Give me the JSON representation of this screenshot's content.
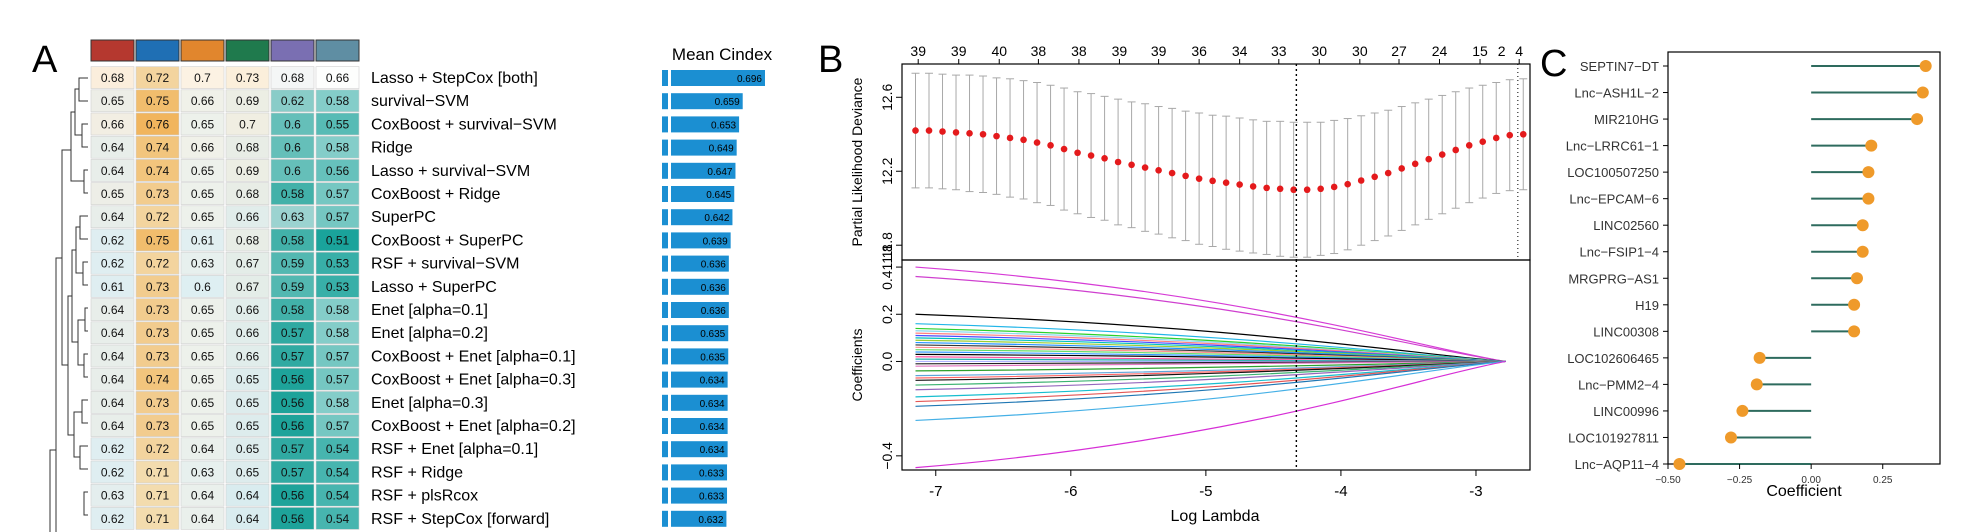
{
  "panels": {
    "a": "A",
    "b": "B",
    "c": "C"
  },
  "heatmap": {
    "swatch_colors": [
      "#b5382f",
      "#1f6fb4",
      "#e1862d",
      "#1f7a4d",
      "#7a6fb2",
      "#5f8ea3"
    ],
    "col_scale": [
      [
        0.62,
        0.68
      ],
      [
        0.71,
        0.76
      ],
      [
        0.6,
        0.7
      ],
      [
        0.64,
        0.73
      ],
      [
        0.56,
        0.68
      ],
      [
        0.51,
        0.66
      ]
    ],
    "low_colors": [
      "#dfeef1",
      "#f3dcae",
      "#deeff2",
      "#d9ecef",
      "#1ea39a",
      "#1aa39b"
    ],
    "high_colors": [
      "#fbeedc",
      "#f1b55d",
      "#fcf2e3",
      "#fbefdb",
      "#f4f6f6",
      "#fdfefd"
    ],
    "rows": [
      {
        "model": "Lasso + StepCox [both]",
        "values": [
          "0.68",
          "0.72",
          "0.7",
          "0.73",
          "0.68",
          "0.66"
        ],
        "cindex": "0.696"
      },
      {
        "model": "survival−SVM",
        "values": [
          "0.65",
          "0.75",
          "0.66",
          "0.69",
          "0.62",
          "0.58"
        ],
        "cindex": "0.659"
      },
      {
        "model": "CoxBoost + survival−SVM",
        "values": [
          "0.66",
          "0.76",
          "0.65",
          "0.7",
          "0.6",
          "0.55"
        ],
        "cindex": "0.653"
      },
      {
        "model": "Ridge",
        "values": [
          "0.64",
          "0.74",
          "0.66",
          "0.68",
          "0.6",
          "0.58"
        ],
        "cindex": "0.649"
      },
      {
        "model": "Lasso + survival−SVM",
        "values": [
          "0.64",
          "0.74",
          "0.65",
          "0.69",
          "0.6",
          "0.56"
        ],
        "cindex": "0.647"
      },
      {
        "model": "CoxBoost + Ridge",
        "values": [
          "0.65",
          "0.73",
          "0.65",
          "0.68",
          "0.58",
          "0.57"
        ],
        "cindex": "0.645"
      },
      {
        "model": "SuperPC",
        "values": [
          "0.64",
          "0.72",
          "0.65",
          "0.66",
          "0.63",
          "0.57"
        ],
        "cindex": "0.642"
      },
      {
        "model": "CoxBoost + SuperPC",
        "values": [
          "0.62",
          "0.75",
          "0.61",
          "0.68",
          "0.58",
          "0.51"
        ],
        "cindex": "0.639"
      },
      {
        "model": "RSF + survival−SVM",
        "values": [
          "0.62",
          "0.72",
          "0.63",
          "0.67",
          "0.59",
          "0.53"
        ],
        "cindex": "0.636"
      },
      {
        "model": "Lasso + SuperPC",
        "values": [
          "0.61",
          "0.73",
          "0.6",
          "0.67",
          "0.59",
          "0.53"
        ],
        "cindex": "0.636"
      },
      {
        "model": "Enet [alpha=0.1]",
        "values": [
          "0.64",
          "0.73",
          "0.65",
          "0.66",
          "0.58",
          "0.58"
        ],
        "cindex": "0.636"
      },
      {
        "model": "Enet [alpha=0.2]",
        "values": [
          "0.64",
          "0.73",
          "0.65",
          "0.66",
          "0.57",
          "0.58"
        ],
        "cindex": "0.635"
      },
      {
        "model": "CoxBoost + Enet [alpha=0.1]",
        "values": [
          "0.64",
          "0.73",
          "0.65",
          "0.66",
          "0.57",
          "0.57"
        ],
        "cindex": "0.635"
      },
      {
        "model": "CoxBoost + Enet [alpha=0.3]",
        "values": [
          "0.64",
          "0.74",
          "0.65",
          "0.65",
          "0.56",
          "0.57"
        ],
        "cindex": "0.634"
      },
      {
        "model": "Enet [alpha=0.3]",
        "values": [
          "0.64",
          "0.73",
          "0.65",
          "0.65",
          "0.56",
          "0.58"
        ],
        "cindex": "0.634"
      },
      {
        "model": "CoxBoost + Enet [alpha=0.2]",
        "values": [
          "0.64",
          "0.73",
          "0.65",
          "0.65",
          "0.56",
          "0.57"
        ],
        "cindex": "0.634"
      },
      {
        "model": "RSF + Enet [alpha=0.1]",
        "values": [
          "0.62",
          "0.72",
          "0.64",
          "0.65",
          "0.57",
          "0.54"
        ],
        "cindex": "0.634"
      },
      {
        "model": "RSF + Ridge",
        "values": [
          "0.62",
          "0.71",
          "0.63",
          "0.65",
          "0.57",
          "0.54"
        ],
        "cindex": "0.633"
      },
      {
        "model": "RSF + plsRcox",
        "values": [
          "0.63",
          "0.71",
          "0.64",
          "0.64",
          "0.56",
          "0.54"
        ],
        "cindex": "0.633"
      },
      {
        "model": "RSF + StepCox [forward]",
        "values": [
          "0.62",
          "0.71",
          "0.64",
          "0.64",
          "0.56",
          "0.54"
        ],
        "cindex": "0.632"
      }
    ]
  },
  "chart_data": [
    {
      "type": "bar",
      "orientation": "horizontal",
      "title": "Mean Cindex",
      "categories": [
        "Lasso + StepCox [both]",
        "survival−SVM",
        "CoxBoost + survival−SVM",
        "Ridge",
        "Lasso + survival−SVM",
        "CoxBoost + Ridge",
        "SuperPC",
        "CoxBoost + SuperPC",
        "RSF + survival−SVM",
        "Lasso + SuperPC",
        "Enet [alpha=0.1]",
        "Enet [alpha=0.2]",
        "CoxBoost + Enet [alpha=0.1]",
        "CoxBoost + Enet [alpha=0.3]",
        "Enet [alpha=0.3]",
        "CoxBoost + Enet [alpha=0.2]",
        "RSF + Enet [alpha=0.1]",
        "RSF + Ridge",
        "RSF + plsRcox",
        "RSF + StepCox [forward]"
      ],
      "values": [
        0.696,
        0.659,
        0.653,
        0.649,
        0.647,
        0.645,
        0.642,
        0.639,
        0.636,
        0.636,
        0.636,
        0.635,
        0.635,
        0.634,
        0.634,
        0.634,
        0.634,
        0.633,
        0.633,
        0.632
      ],
      "color": "#1b8fd2"
    },
    {
      "type": "scatter",
      "title": "",
      "xlabel": "",
      "ylabel": "Partial Likelihood Deviance",
      "xlim": [
        -7.25,
        -2.6
      ],
      "ylim": [
        11.72,
        12.78
      ],
      "xticks": [
        -7,
        -6,
        -5,
        -4,
        -3
      ],
      "yticks": [
        11.8,
        12.2,
        12.6
      ],
      "ytick_labels": [
        "11.8",
        "12.2",
        "12.6"
      ],
      "top_ticks": {
        "x": [
          -7.13,
          -6.83,
          -6.53,
          -6.24,
          -5.94,
          -5.64,
          -5.35,
          -5.05,
          -4.75,
          -4.46,
          -4.16,
          -3.86,
          -3.57,
          -3.27,
          -2.97,
          -2.68
        ],
        "labels": [
          "39",
          "39",
          "40",
          "38",
          "38",
          "39",
          "39",
          "36",
          "34",
          "33",
          "30",
          "30",
          "27",
          "24",
          "15",
          "4"
        ]
      },
      "top_extra": {
        "x": -2.81,
        "label": "2"
      },
      "x": [
        -7.15,
        -7.05,
        -6.95,
        -6.85,
        -6.75,
        -6.65,
        -6.55,
        -6.45,
        -6.35,
        -6.25,
        -6.15,
        -6.05,
        -5.95,
        -5.85,
        -5.75,
        -5.65,
        -5.55,
        -5.45,
        -5.35,
        -5.25,
        -5.15,
        -5.05,
        -4.95,
        -4.85,
        -4.75,
        -4.65,
        -4.55,
        -4.45,
        -4.35,
        -4.25,
        -4.15,
        -4.05,
        -3.95,
        -3.85,
        -3.75,
        -3.65,
        -3.55,
        -3.45,
        -3.35,
        -3.25,
        -3.15,
        -3.05,
        -2.95,
        -2.85,
        -2.75,
        -2.65
      ],
      "y": [
        12.42,
        12.42,
        12.415,
        12.41,
        12.405,
        12.4,
        12.39,
        12.38,
        12.37,
        12.355,
        12.34,
        12.32,
        12.3,
        12.285,
        12.27,
        12.25,
        12.235,
        12.22,
        12.205,
        12.19,
        12.175,
        12.16,
        12.148,
        12.138,
        12.128,
        12.118,
        12.11,
        12.105,
        12.1,
        12.1,
        12.105,
        12.115,
        12.13,
        12.15,
        12.17,
        12.19,
        12.215,
        12.24,
        12.265,
        12.29,
        12.315,
        12.34,
        12.36,
        12.38,
        12.395,
        12.4
      ],
      "errors": [
        0.31,
        0.31,
        0.31,
        0.31,
        0.315,
        0.315,
        0.315,
        0.32,
        0.32,
        0.325,
        0.325,
        0.33,
        0.33,
        0.335,
        0.335,
        0.34,
        0.34,
        0.345,
        0.345,
        0.35,
        0.35,
        0.355,
        0.355,
        0.36,
        0.36,
        0.36,
        0.36,
        0.365,
        0.365,
        0.365,
        0.36,
        0.36,
        0.355,
        0.35,
        0.345,
        0.34,
        0.335,
        0.33,
        0.325,
        0.32,
        0.315,
        0.31,
        0.305,
        0.3,
        0.3,
        0.3
      ],
      "vlines": [
        -4.33,
        -2.69
      ],
      "color": "#e41a1c"
    },
    {
      "type": "line",
      "title": "",
      "xlabel": "Log Lambda",
      "ylabel": "Coefficients",
      "xlim": [
        -7.25,
        -2.6
      ],
      "ylim": [
        -0.46,
        0.43
      ],
      "xticks": [
        -7,
        -6,
        -5,
        -4,
        -3
      ],
      "yticks": [
        -0.4,
        0.0,
        0.2,
        0.4
      ],
      "ytick_labels": [
        "−0.4",
        "0.0",
        "0.2",
        "0.411.8"
      ],
      "vline": -4.33,
      "series_start_x": -7.15,
      "series_end_x": -2.78,
      "series": [
        {
          "start": 0.4,
          "color": "#d63bd6"
        },
        {
          "start": 0.36,
          "color": "#cf3fcf"
        },
        {
          "start": 0.2,
          "color": "#000000"
        },
        {
          "start": 0.16,
          "color": "#22b5e8"
        },
        {
          "start": 0.14,
          "color": "#2bd02b"
        },
        {
          "start": 0.13,
          "color": "#8ad9f0"
        },
        {
          "start": 0.12,
          "color": "#ff7f7f"
        },
        {
          "start": 0.11,
          "color": "#4a4aff"
        },
        {
          "start": 0.1,
          "color": "#00c0c0"
        },
        {
          "start": 0.09,
          "color": "#9acd32"
        },
        {
          "start": 0.08,
          "color": "#1e90ff"
        },
        {
          "start": 0.07,
          "color": "#333333"
        },
        {
          "start": 0.06,
          "color": "#ff9090"
        },
        {
          "start": 0.05,
          "color": "#66dd66"
        },
        {
          "start": 0.04,
          "color": "#3399ff"
        },
        {
          "start": 0.03,
          "color": "#000000"
        },
        {
          "start": 0.02,
          "color": "#ff4fa0"
        },
        {
          "start": 0.01,
          "color": "#20b2aa"
        },
        {
          "start": 0.0,
          "color": "#b0b0ff"
        },
        {
          "start": -0.01,
          "color": "#222222"
        },
        {
          "start": -0.02,
          "color": "#e377c2"
        },
        {
          "start": -0.04,
          "color": "#2ca02c"
        },
        {
          "start": -0.06,
          "color": "#5da5da"
        },
        {
          "start": -0.07,
          "color": "#ff6666"
        },
        {
          "start": -0.08,
          "color": "#111111"
        },
        {
          "start": -0.1,
          "color": "#3cb371"
        },
        {
          "start": -0.12,
          "color": "#9467bd"
        },
        {
          "start": -0.15,
          "color": "#17becf"
        },
        {
          "start": -0.17,
          "color": "#e45756"
        },
        {
          "start": -0.19,
          "color": "#1f77b4"
        },
        {
          "start": -0.25,
          "color": "#45b0e6"
        },
        {
          "start": -0.45,
          "color": "#d62fd6"
        }
      ]
    },
    {
      "type": "lollipop",
      "title": "",
      "xlabel": "Coefficient",
      "ylabel": "",
      "xlim": [
        -0.5,
        0.45
      ],
      "xticks": [
        -0.5,
        -0.25,
        0.0,
        0.25
      ],
      "xtick_labels": [
        "−0.50",
        "−0.25",
        "0.00",
        "0.25"
      ],
      "categories": [
        "SEPTIN7−DT",
        "Lnc−ASH1L−2",
        "MIR210HG",
        "Lnc−LRRC61−1",
        "LOC100507250",
        "Lnc−EPCAM−6",
        "LINC02560",
        "Lnc−FSIP1−4",
        "MRGPRG−AS1",
        "H19",
        "LINC00308",
        "LOC102606465",
        "Lnc−PMM2−4",
        "LINC00996",
        "LOC101927811",
        "Lnc−AQP11−4"
      ],
      "values": [
        0.4,
        0.39,
        0.37,
        0.21,
        0.2,
        0.2,
        0.18,
        0.18,
        0.16,
        0.15,
        0.15,
        -0.18,
        -0.19,
        -0.24,
        -0.28,
        -0.46
      ],
      "stem_color": "#2e6b5e",
      "dot_color": "#ef9a2a"
    }
  ]
}
